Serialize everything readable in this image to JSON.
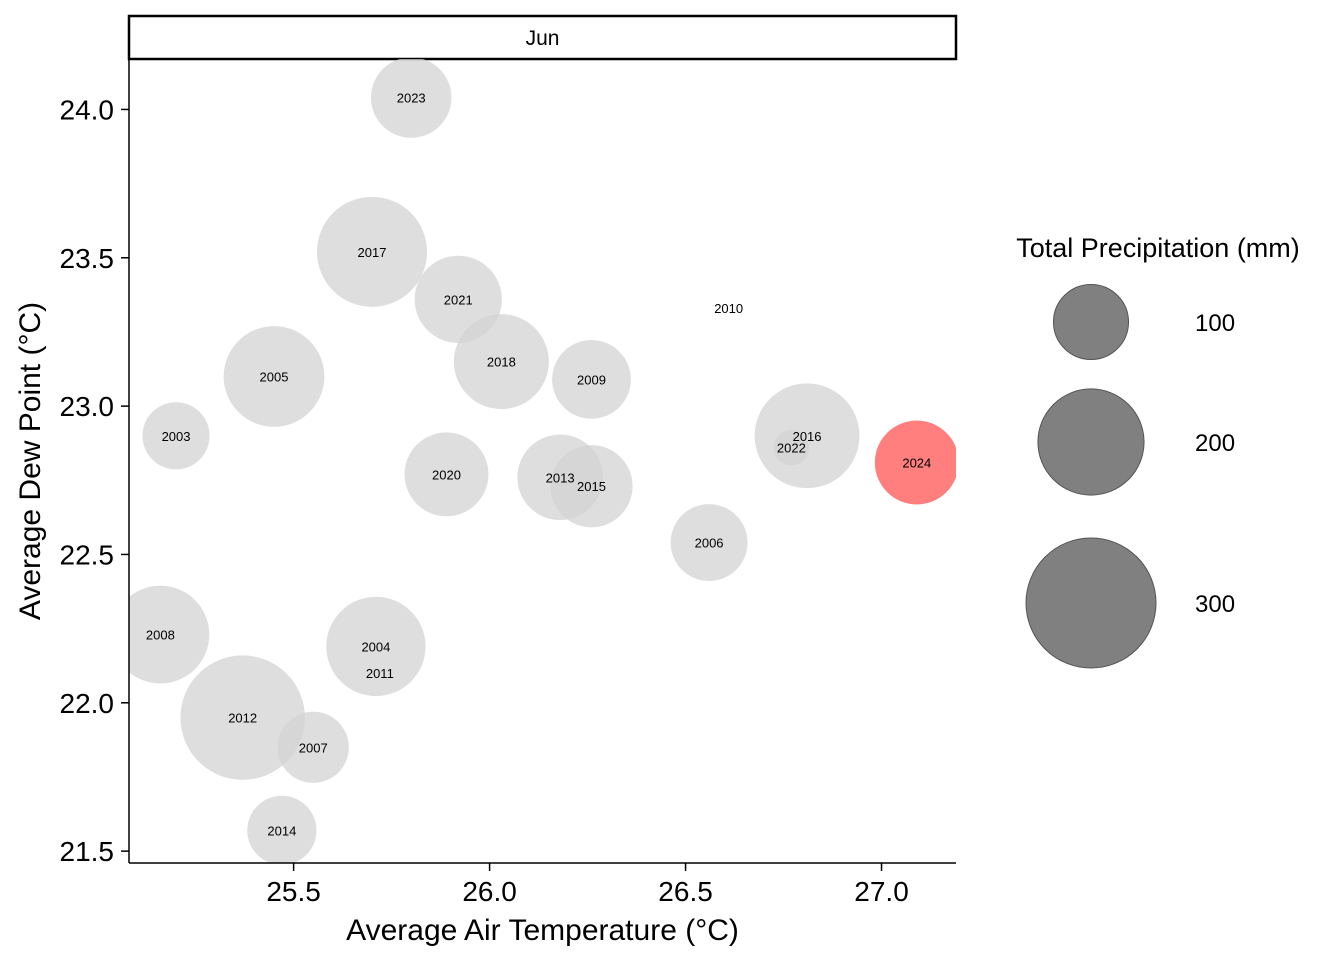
{
  "chart_data": {
    "type": "scatter",
    "facet": "Jun",
    "xlabel": "Average Air Temperature (°C)",
    "ylabel": "Average Dew Point (°C)",
    "xlim": [
      25.08,
      27.19
    ],
    "ylim": [
      21.46,
      24.17
    ],
    "x_ticks": [
      25.5,
      26.0,
      26.5,
      27.0
    ],
    "x_tick_labels": [
      "25.5",
      "26.0",
      "26.5",
      "27.0"
    ],
    "y_ticks": [
      21.5,
      22.0,
      22.5,
      23.0,
      23.5,
      24.0
    ],
    "y_tick_labels": [
      "21.5",
      "22.0",
      "22.5",
      "23.0",
      "23.5",
      "24.0"
    ],
    "grid": false,
    "colors": {
      "default": "#d3d3d3",
      "highlight": "#ff7f7f",
      "legend": "#808080"
    },
    "size_legend": {
      "title": "Total Precipitation (mm)",
      "placement": "right",
      "breaks": [
        100,
        200,
        300
      ],
      "labels": [
        "100",
        "200",
        "300"
      ]
    },
    "points": [
      {
        "label": "2023",
        "x": 25.8,
        "y": 24.04,
        "precip": 115,
        "highlight": false
      },
      {
        "label": "2017",
        "x": 25.7,
        "y": 23.52,
        "precip": 215,
        "highlight": false
      },
      {
        "label": "2021",
        "x": 25.92,
        "y": 23.36,
        "precip": 135,
        "highlight": false
      },
      {
        "label": "2010",
        "x": 26.61,
        "y": 23.33,
        "precip": 0,
        "highlight": false
      },
      {
        "label": "2018",
        "x": 26.03,
        "y": 23.15,
        "precip": 160,
        "highlight": false
      },
      {
        "label": "2005",
        "x": 25.45,
        "y": 23.1,
        "precip": 180,
        "highlight": false
      },
      {
        "label": "2009",
        "x": 26.26,
        "y": 23.09,
        "precip": 110,
        "highlight": false
      },
      {
        "label": "2003",
        "x": 25.2,
        "y": 22.9,
        "precip": 80,
        "highlight": false
      },
      {
        "label": "2016",
        "x": 26.81,
        "y": 22.9,
        "precip": 195,
        "highlight": false
      },
      {
        "label": "2022",
        "x": 26.77,
        "y": 22.86,
        "precip": 22,
        "highlight": false
      },
      {
        "label": "2024",
        "x": 27.09,
        "y": 22.81,
        "precip": 125,
        "highlight": true
      },
      {
        "label": "2020",
        "x": 25.89,
        "y": 22.77,
        "precip": 125,
        "highlight": false
      },
      {
        "label": "2013",
        "x": 26.18,
        "y": 22.76,
        "precip": 130,
        "highlight": false
      },
      {
        "label": "2015",
        "x": 26.26,
        "y": 22.73,
        "precip": 120,
        "highlight": false
      },
      {
        "label": "2006",
        "x": 26.56,
        "y": 22.54,
        "precip": 105,
        "highlight": false
      },
      {
        "label": "2008",
        "x": 25.16,
        "y": 22.23,
        "precip": 170,
        "highlight": false
      },
      {
        "label": "2004",
        "x": 25.71,
        "y": 22.19,
        "precip": 175,
        "highlight": false
      },
      {
        "label": "2011",
        "x": 25.72,
        "y": 22.1,
        "precip": 0,
        "highlight": false
      },
      {
        "label": "2012",
        "x": 25.37,
        "y": 21.95,
        "precip": 275,
        "highlight": false
      },
      {
        "label": "2007",
        "x": 25.55,
        "y": 21.85,
        "precip": 90,
        "highlight": false
      },
      {
        "label": "2014",
        "x": 25.47,
        "y": 21.57,
        "precip": 85,
        "highlight": false
      }
    ]
  }
}
